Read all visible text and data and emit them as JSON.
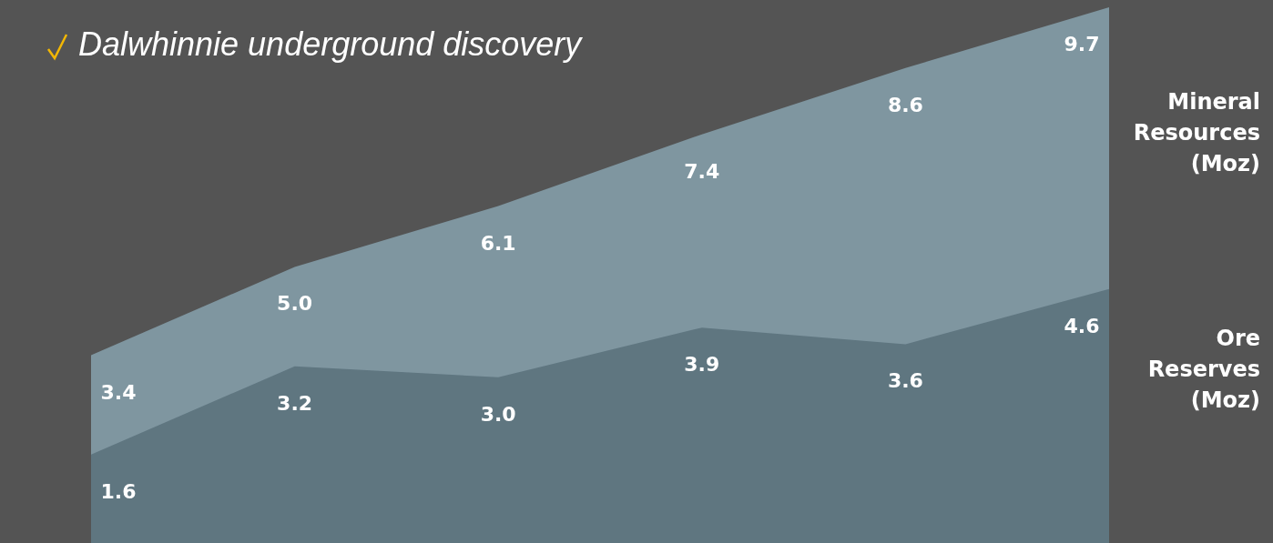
{
  "chart_data": {
    "type": "area",
    "title": "Dalwhinnie underground discovery",
    "categories": [
      null,
      null,
      null,
      null,
      null,
      null
    ],
    "series": [
      {
        "name": "Mineral Resources (Moz)",
        "color": "#7f96a0",
        "values": [
          3.4,
          5.0,
          6.1,
          7.4,
          8.6,
          9.7
        ],
        "value_labels": [
          "3.4",
          "5.0",
          "6.1",
          "7.4",
          "8.6",
          "9.7"
        ]
      },
      {
        "name": "Ore Reserves (Moz)",
        "color": "#5f7680",
        "values": [
          1.6,
          3.2,
          3.0,
          3.9,
          3.6,
          4.6
        ],
        "value_labels": [
          "1.6",
          "3.2",
          "3.0",
          "3.9",
          "3.6",
          "4.6"
        ]
      }
    ],
    "legend": false,
    "grid": false
  }
}
